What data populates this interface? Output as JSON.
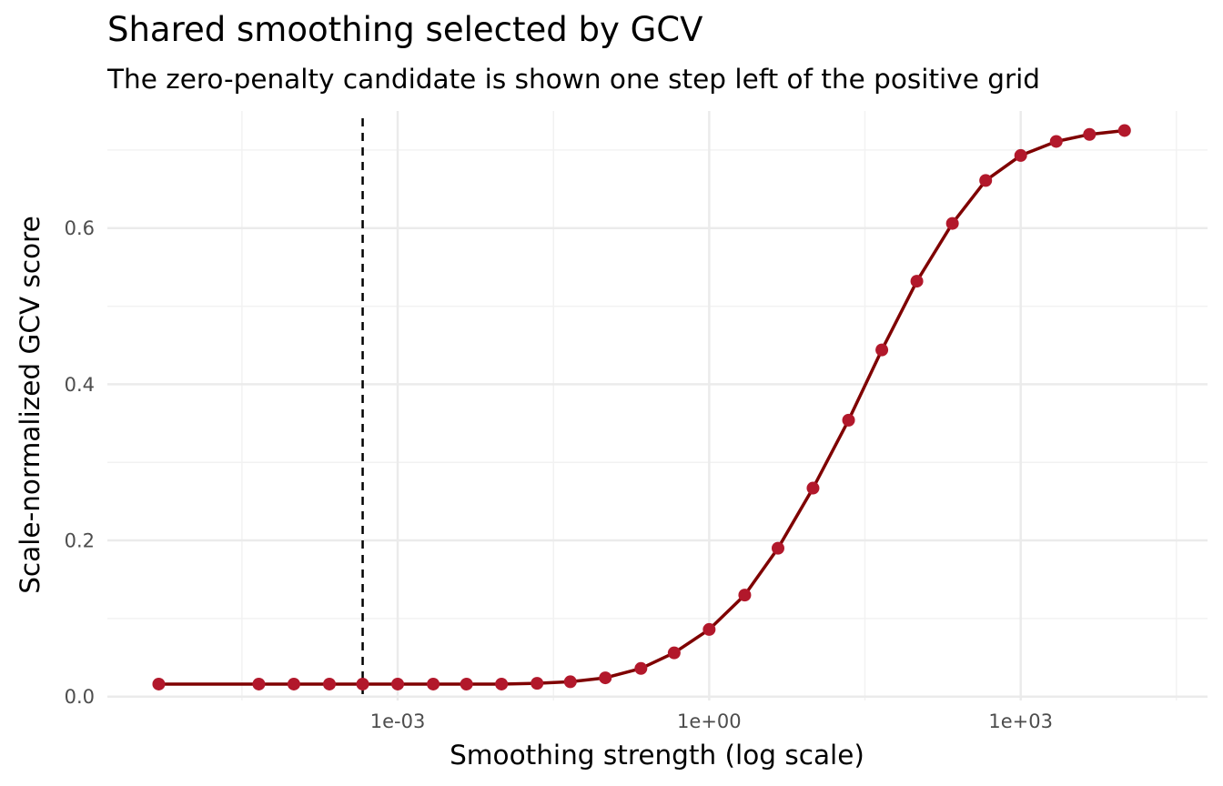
{
  "chart_data": {
    "type": "line",
    "title": "Shared smoothing selected by GCV",
    "subtitle": "The zero-penalty candidate is shown one step left of the positive grid",
    "xlabel": "Smoothing strength (log scale)",
    "ylabel": "Scale-normalized GCV score",
    "x_scale": "log10",
    "xlim": [
      1.6e-06,
      63000.0
    ],
    "ylim": [
      -0.005,
      0.75
    ],
    "x_ticks": [
      0.001,
      1,
      1000
    ],
    "x_tick_labels": [
      "1e-03",
      "1e+00",
      "1e+03"
    ],
    "y_ticks": [
      0.0,
      0.2,
      0.4,
      0.6
    ],
    "y_tick_labels": [
      "0.0",
      "0.2",
      "0.4",
      "0.6"
    ],
    "grid": true,
    "vline": {
      "x": 0.00046,
      "style": "dashed",
      "color": "#000000"
    },
    "series": [
      {
        "x": [
          5e-06,
          4.6e-05,
          0.0001,
          0.00022,
          0.00046,
          0.001,
          0.0022,
          0.0046,
          0.01,
          0.022,
          0.046,
          0.1,
          0.22,
          0.46,
          1,
          2.2,
          4.6,
          10,
          22,
          46,
          100,
          220,
          460,
          1000,
          2200,
          4600,
          10000
        ],
        "y": [
          0.016,
          0.016,
          0.016,
          0.016,
          0.016,
          0.016,
          0.016,
          0.016,
          0.016,
          0.017,
          0.019,
          0.024,
          0.036,
          0.056,
          0.086,
          0.13,
          0.19,
          0.267,
          0.354,
          0.444,
          0.532,
          0.606,
          0.661,
          0.693,
          0.711,
          0.72,
          0.725
        ],
        "line_color": "#7f0000",
        "point_color": "#b2182b"
      }
    ]
  }
}
